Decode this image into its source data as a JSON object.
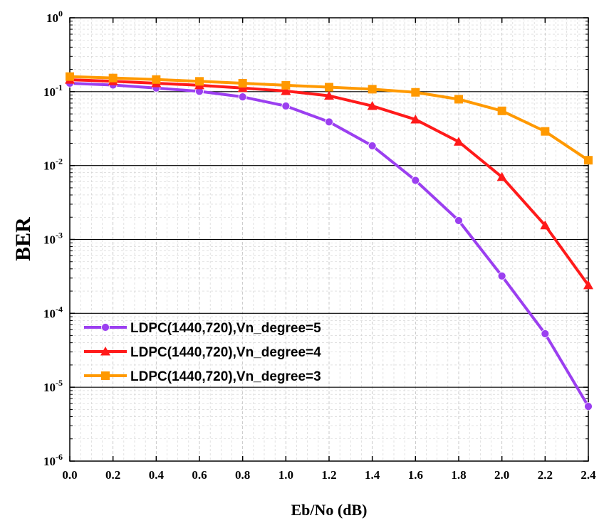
{
  "chart_data": {
    "type": "line",
    "title": "",
    "xlabel": "Eb/No (dB)",
    "ylabel": "BER",
    "yscale": "log",
    "xlim": [
      0.0,
      2.4
    ],
    "ylim": [
      1e-06,
      1
    ],
    "x_ticks": [
      "0.0",
      "0.2",
      "0.4",
      "0.6",
      "0.8",
      "1.0",
      "1.2",
      "1.4",
      "1.6",
      "1.8",
      "2.0",
      "2.2",
      "2.4"
    ],
    "y_ticks": [
      {
        "base": "10",
        "exp": "0"
      },
      {
        "base": "10",
        "exp": "-1"
      },
      {
        "base": "10",
        "exp": "-2"
      },
      {
        "base": "10",
        "exp": "-3"
      },
      {
        "base": "10",
        "exp": "-4"
      },
      {
        "base": "10",
        "exp": "-5"
      },
      {
        "base": "10",
        "exp": "-6"
      }
    ],
    "grid": "major horizontal lines at decades; dashed minor grid",
    "legend_position": "lower-left",
    "x": [
      0.0,
      0.2,
      0.4,
      0.6,
      0.8,
      1.0,
      1.2,
      1.4,
      1.6,
      1.8,
      2.0,
      2.2,
      2.4
    ],
    "series": [
      {
        "name": "LDPC(1440,720),Vn_degree=5",
        "color": "#9b3ff0",
        "marker": "circle",
        "values": [
          0.13,
          0.123,
          0.112,
          0.101,
          0.085,
          0.064,
          0.039,
          0.0185,
          0.0063,
          0.0018,
          0.00032,
          5.3e-05,
          5.5e-06
        ]
      },
      {
        "name": "LDPC(1440,720),Vn_degree=4",
        "color": "#ff1a1a",
        "marker": "triangle",
        "values": [
          0.145,
          0.138,
          0.13,
          0.122,
          0.112,
          0.102,
          0.088,
          0.064,
          0.042,
          0.021,
          0.007,
          0.00155,
          0.00024
        ]
      },
      {
        "name": "LDPC(1440,720),Vn_degree=3",
        "color": "#ff9900",
        "marker": "square",
        "values": [
          0.16,
          0.153,
          0.146,
          0.138,
          0.13,
          0.122,
          0.115,
          0.108,
          0.098,
          0.079,
          0.055,
          0.029,
          0.0118
        ]
      }
    ]
  }
}
